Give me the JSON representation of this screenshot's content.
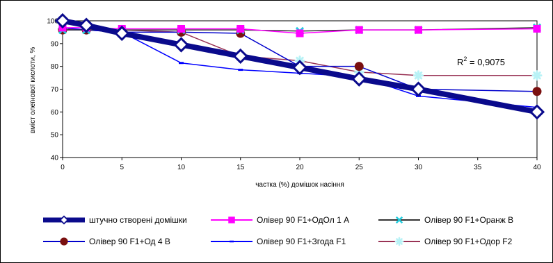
{
  "chart_data": {
    "type": "line",
    "xlabel": "частка (%) домішок насіння",
    "ylabel": "вміст олеїнової кислоти, %",
    "xlim": [
      0,
      40
    ],
    "ylim": [
      40,
      100
    ],
    "x_ticks": [
      0,
      5,
      10,
      15,
      20,
      25,
      30,
      35,
      40
    ],
    "y_ticks": [
      40,
      50,
      60,
      70,
      80,
      90,
      100
    ],
    "grid": false,
    "legend_position": "bottom",
    "annotation": {
      "base": "R",
      "sup": "2",
      "rest": " = 0,9075"
    },
    "series": [
      {
        "name": "штучно створені домішки",
        "color": "#0a0a8c",
        "marker": "diamond",
        "x": [
          0,
          2,
          5,
          10,
          15,
          20,
          25,
          30,
          40
        ],
        "y": [
          100,
          98,
          94.5,
          89.5,
          84.5,
          79.5,
          74.5,
          70,
          60
        ]
      },
      {
        "name": "Олівер 90 F1+ОдОл 1 А",
        "color": "#ff00ff",
        "marker": "square",
        "x": [
          0,
          2,
          5,
          10,
          15,
          20,
          25,
          30,
          40
        ],
        "y": [
          97,
          97,
          96.5,
          96.5,
          96.5,
          94.5,
          96,
          96,
          96.5
        ]
      },
      {
        "name": "Олівер 90 F1+Оранж В",
        "color": "#333333",
        "marker": "cross",
        "x": [
          0,
          2,
          5,
          10,
          15,
          20,
          25,
          30,
          40
        ],
        "y": [
          96,
          96,
          96,
          96,
          96,
          95.5,
          96,
          96,
          97
        ]
      },
      {
        "name": "Олівер 90 F1+Од 4 В",
        "color": "#0000cc",
        "marker": "circle",
        "x": [
          0,
          2,
          5,
          10,
          15,
          20,
          25,
          30,
          40
        ],
        "y": [
          96,
          96,
          95,
          95,
          94.5,
          80,
          80,
          70,
          69
        ]
      },
      {
        "name": "Олівер 90 F1+Згода F1",
        "color": "#0000ff",
        "marker": "dash",
        "x": [
          0,
          2,
          5,
          10,
          15,
          20,
          25,
          30,
          40
        ],
        "y": [
          97,
          96,
          95,
          81.5,
          78.5,
          77,
          75.5,
          67,
          62
        ]
      },
      {
        "name": "Олівер 90 F1+Одор F2",
        "color": "#993355",
        "marker": "star",
        "x": [
          0,
          2,
          5,
          10,
          15,
          20,
          25,
          30,
          40
        ],
        "y": [
          96.5,
          96,
          96,
          95,
          84.5,
          82.5,
          77.5,
          76,
          76
        ]
      }
    ]
  }
}
